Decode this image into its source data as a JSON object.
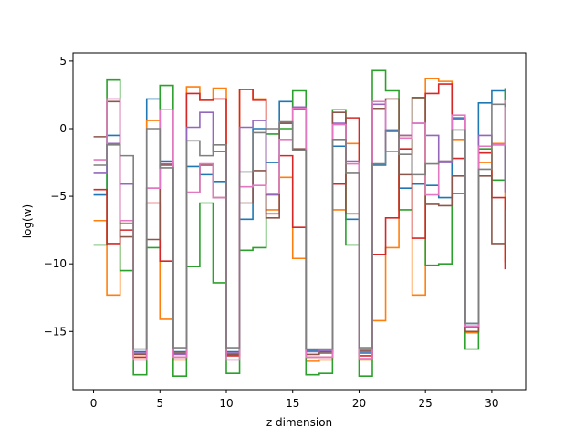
{
  "chart_data": {
    "type": "line",
    "step": "post",
    "xlabel": "z dimension",
    "ylabel": "log(w)",
    "xlim": [
      -1.55,
      32.55
    ],
    "ylim": [
      -19.3,
      5.6
    ],
    "xticks": [
      0,
      5,
      10,
      15,
      20,
      25,
      30
    ],
    "yticks": [
      -15,
      -10,
      -5,
      0,
      5
    ],
    "grid": false,
    "x": [
      0,
      1,
      2,
      3,
      4,
      5,
      6,
      7,
      8,
      9,
      10,
      11,
      12,
      13,
      14,
      15,
      16,
      17,
      18,
      19,
      20,
      21,
      22,
      23,
      24,
      25,
      26,
      27,
      28,
      29,
      30,
      31
    ],
    "series": [
      {
        "color": "#1f77b4",
        "values": [
          -4.9,
          -0.5,
          -7.0,
          -16.5,
          2.2,
          -2.4,
          -16.5,
          -2.8,
          -3.4,
          -3.9,
          -16.5,
          -6.7,
          0.0,
          -2.5,
          2.0,
          1.4,
          -16.4,
          -16.5,
          -1.3,
          -6.7,
          -16.6,
          -2.7,
          -0.2,
          -4.4,
          -4.1,
          -4.2,
          -5.1,
          0.8,
          -14.4,
          1.9,
          2.8,
          1.8
        ]
      },
      {
        "color": "#ff7f0e",
        "values": [
          -6.8,
          -12.3,
          -7.0,
          -16.9,
          0.6,
          -14.1,
          -17.1,
          3.1,
          2.1,
          3.0,
          -16.7,
          2.9,
          2.2,
          -6.0,
          -3.6,
          -9.6,
          -17.2,
          -17.1,
          -6.0,
          -1.1,
          -17.1,
          -14.2,
          -8.8,
          -0.5,
          -12.3,
          3.7,
          3.5,
          -0.8,
          -15.1,
          -2.5,
          -1.1,
          -9.9
        ]
      },
      {
        "color": "#2ca02c",
        "values": [
          -8.6,
          3.6,
          -10.5,
          -18.2,
          -8.8,
          3.2,
          -18.3,
          -10.2,
          -5.5,
          -11.4,
          -18.1,
          -9.0,
          -8.8,
          -0.4,
          0.0,
          2.8,
          -18.2,
          -18.1,
          1.4,
          -8.6,
          -18.3,
          4.3,
          2.8,
          -6.0,
          2.3,
          -10.1,
          -10.0,
          -4.8,
          -16.3,
          -1.5,
          -3.8,
          3.0
        ]
      },
      {
        "color": "#d62728",
        "values": [
          -4.5,
          -8.5,
          -7.5,
          -16.9,
          -5.5,
          -9.8,
          -16.9,
          2.6,
          2.1,
          2.2,
          -16.8,
          2.9,
          2.1,
          -6.3,
          -2.0,
          -7.3,
          -16.9,
          -16.9,
          -4.1,
          0.8,
          -16.8,
          -9.3,
          -6.6,
          -1.5,
          -8.1,
          2.6,
          3.3,
          -2.2,
          -14.7,
          -1.8,
          -5.1,
          -10.4
        ]
      },
      {
        "color": "#9467bd",
        "values": [
          -3.3,
          -1.1,
          -4.1,
          -16.6,
          -4.4,
          -2.6,
          -16.7,
          0.1,
          1.2,
          -1.7,
          -16.6,
          0.1,
          0.6,
          -4.9,
          0.4,
          1.6,
          -16.5,
          -16.4,
          0.4,
          -2.4,
          -16.5,
          1.8,
          -0.1,
          -0.5,
          0.4,
          -0.5,
          -2.5,
          0.7,
          -14.7,
          -0.5,
          -1.2,
          -4.7
        ]
      },
      {
        "color": "#8c564b",
        "values": [
          -0.6,
          2.0,
          -8.0,
          -16.7,
          -8.2,
          -2.7,
          -16.6,
          -4.7,
          -2.7,
          -5.1,
          -16.7,
          -5.5,
          -3.1,
          -6.6,
          0.4,
          -1.5,
          -16.7,
          -16.6,
          1.2,
          -6.3,
          -16.4,
          1.5,
          2.2,
          -3.4,
          2.3,
          -5.6,
          -5.7,
          -3.5,
          -15.0,
          -3.5,
          -8.5,
          -6.0
        ]
      },
      {
        "color": "#e377c2",
        "values": [
          -2.3,
          2.2,
          -6.8,
          -17.1,
          -4.4,
          1.4,
          -16.9,
          -4.7,
          -2.6,
          -5.1,
          -17.1,
          -4.3,
          -4.2,
          -4.8,
          -0.8,
          1.5,
          -16.9,
          -16.9,
          0.3,
          -2.6,
          -17.0,
          2.0,
          -1.7,
          -0.7,
          0.4,
          -4.9,
          -2.4,
          1.0,
          -14.6,
          -1.3,
          -1.2,
          2.1
        ]
      },
      {
        "color": "#7f7f7f",
        "values": [
          -2.7,
          -1.2,
          -2.0,
          -16.3,
          0.0,
          -2.9,
          -16.2,
          -0.9,
          -2.0,
          -1.2,
          -16.2,
          -3.2,
          -0.3,
          0.0,
          0.5,
          -1.6,
          -16.3,
          -16.3,
          -0.8,
          -3.3,
          -16.2,
          -2.6,
          -0.1,
          -1.9,
          -3.4,
          -2.6,
          -2.4,
          -0.1,
          -14.4,
          -3.0,
          1.8,
          1.6
        ]
      }
    ]
  }
}
